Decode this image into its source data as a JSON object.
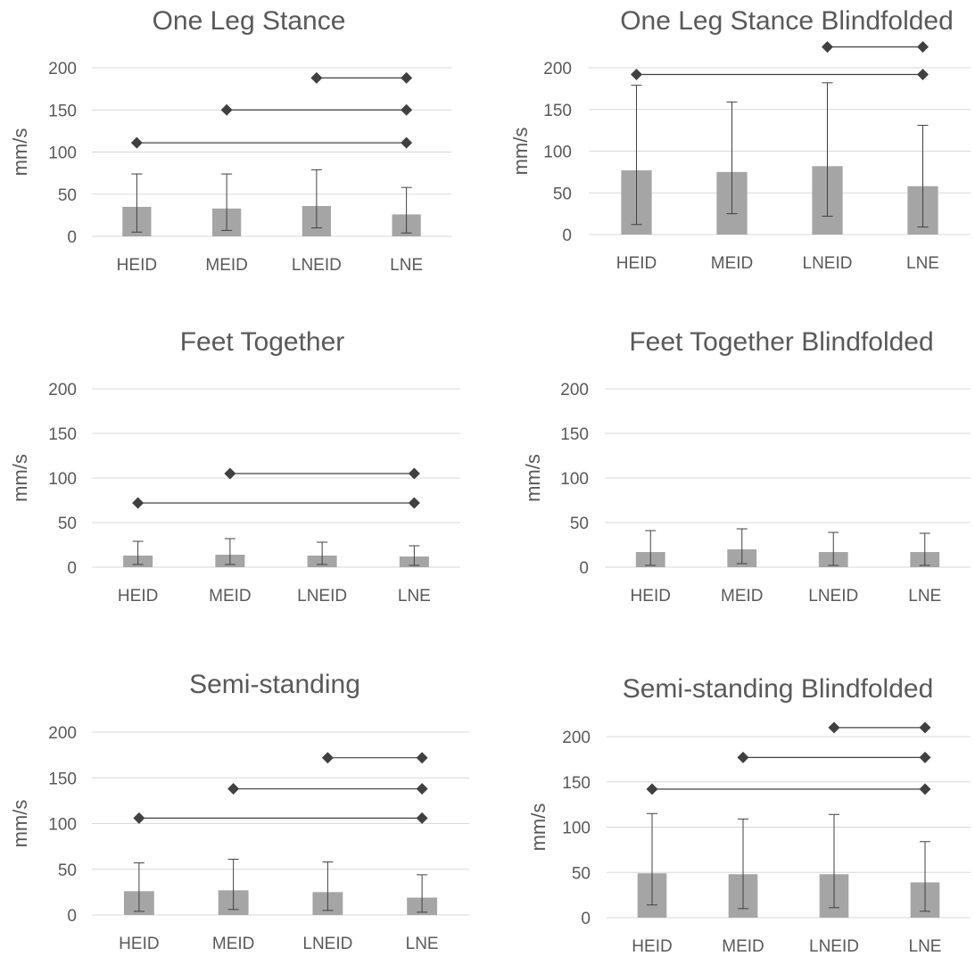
{
  "colors": {
    "bar": "#a5a5a5",
    "gridline": "#d9d9d9",
    "text": "#595959",
    "line": "#404040"
  },
  "chart_data": [
    {
      "type": "bar",
      "title": "One Leg Stance",
      "ylabel": "mm/s",
      "ylim": [
        0,
        200
      ],
      "yticks": [
        "0",
        "50",
        "100",
        "150",
        "200"
      ],
      "categories": [
        "HEID",
        "MEID",
        "LNEID",
        "LNE"
      ],
      "values": [
        35,
        33,
        36,
        26
      ],
      "error_low": [
        5,
        7,
        10,
        4
      ],
      "error_high": [
        74,
        74,
        79,
        58
      ],
      "significance": [
        {
          "from": "HEID",
          "to": "LNE",
          "y": 111
        },
        {
          "from": "MEID",
          "to": "LNE",
          "y": 150
        },
        {
          "from": "LNEID",
          "to": "LNE",
          "y": 188
        }
      ]
    },
    {
      "type": "bar",
      "title": "One Leg Stance Blindfolded",
      "ylabel": "mm/s",
      "ylim": [
        0,
        200
      ],
      "yticks": [
        "0",
        "50",
        "100",
        "150",
        "200"
      ],
      "categories": [
        "HEID",
        "MEID",
        "LNEID",
        "LNE"
      ],
      "values": [
        77,
        75,
        82,
        58
      ],
      "error_low": [
        12,
        25,
        22,
        9
      ],
      "error_high": [
        179,
        159,
        182,
        131
      ],
      "significance": [
        {
          "from": "HEID",
          "to": "LNE",
          "y": 192
        },
        {
          "from": "LNEID",
          "to": "LNE",
          "y": 225
        }
      ]
    },
    {
      "type": "bar",
      "title": "Feet Together",
      "ylabel": "mm/s",
      "ylim": [
        0,
        200
      ],
      "yticks": [
        "0",
        "50",
        "100",
        "150",
        "200"
      ],
      "categories": [
        "HEID",
        "MEID",
        "LNEID",
        "LNE"
      ],
      "values": [
        13,
        14,
        13,
        12
      ],
      "error_low": [
        3,
        3,
        3,
        2
      ],
      "error_high": [
        29,
        32,
        28,
        24
      ],
      "significance": [
        {
          "from": "HEID",
          "to": "LNE",
          "y": 72
        },
        {
          "from": "MEID",
          "to": "LNE",
          "y": 105
        }
      ]
    },
    {
      "type": "bar",
      "title": "Feet Together Blindfolded",
      "ylabel": "mm/s",
      "ylim": [
        0,
        200
      ],
      "yticks": [
        "0",
        "50",
        "100",
        "150",
        "200"
      ],
      "categories": [
        "HEID",
        "MEID",
        "LNEID",
        "LNE"
      ],
      "values": [
        17,
        20,
        17,
        17
      ],
      "error_low": [
        2,
        4,
        2,
        2
      ],
      "error_high": [
        41,
        43,
        39,
        38
      ],
      "significance": []
    },
    {
      "type": "bar",
      "title": "Semi-standing",
      "ylabel": "mm/s",
      "ylim": [
        0,
        200
      ],
      "yticks": [
        "0",
        "50",
        "100",
        "150",
        "200"
      ],
      "categories": [
        "HEID",
        "MEID",
        "LNEID",
        "LNE"
      ],
      "values": [
        26,
        27,
        25,
        19
      ],
      "error_low": [
        4,
        6,
        5,
        3
      ],
      "error_high": [
        57,
        61,
        58,
        44
      ],
      "significance": [
        {
          "from": "HEID",
          "to": "LNE",
          "y": 106
        },
        {
          "from": "MEID",
          "to": "LNE",
          "y": 138
        },
        {
          "from": "LNEID",
          "to": "LNE",
          "y": 172
        }
      ]
    },
    {
      "type": "bar",
      "title": "Semi-standing Blindfolded",
      "ylabel": "mm/s",
      "ylim": [
        0,
        200
      ],
      "yticks": [
        "0",
        "50",
        "100",
        "150",
        "200"
      ],
      "categories": [
        "HEID",
        "MEID",
        "LNEID",
        "LNE"
      ],
      "values": [
        49,
        48,
        48,
        39
      ],
      "error_low": [
        14,
        10,
        11,
        7
      ],
      "error_high": [
        115,
        109,
        114,
        84
      ],
      "significance": [
        {
          "from": "HEID",
          "to": "LNE",
          "y": 142
        },
        {
          "from": "MEID",
          "to": "LNE",
          "y": 177
        },
        {
          "from": "LNEID",
          "to": "LNE",
          "y": 210
        }
      ]
    }
  ]
}
